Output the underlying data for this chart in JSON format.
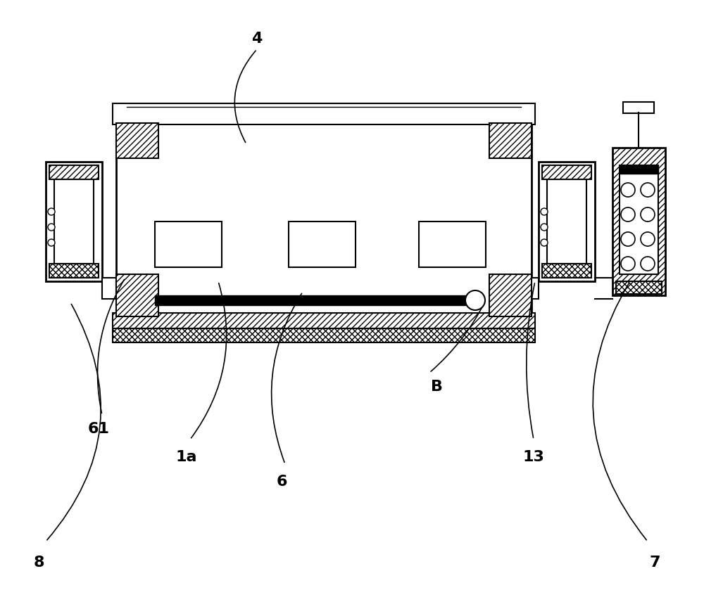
{
  "bg_color": "#ffffff",
  "figsize": [
    10.0,
    8.39
  ],
  "dpi": 100
}
